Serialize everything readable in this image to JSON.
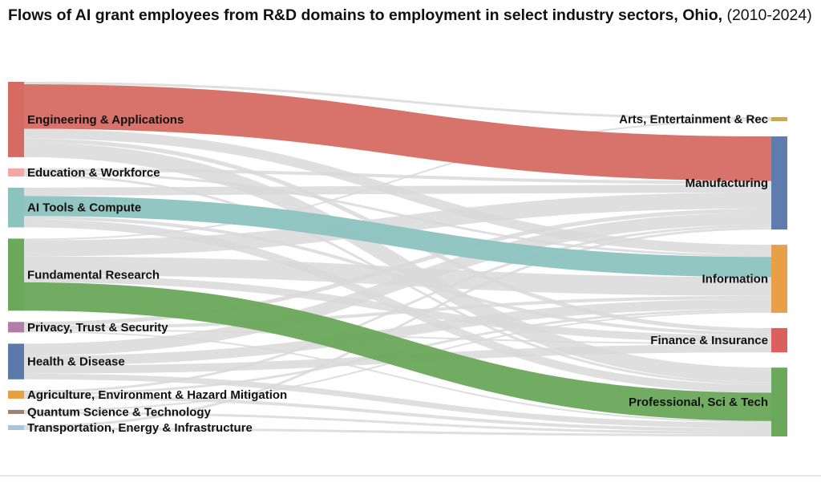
{
  "chart_data": {
    "type": "sankey",
    "title": "Flows of AI grant employees from R&D domains to employment in select industry sectors, Ohio,",
    "subtitle": "(2010-2024)",
    "link_color": "#d9d9d9",
    "sources": [
      {
        "name": "Engineering & Applications",
        "color": "#d66b64"
      },
      {
        "name": "Education & Workforce",
        "color": "#f4a6a8"
      },
      {
        "name": "AI Tools & Compute",
        "color": "#8cc3bf"
      },
      {
        "name": "Fundamental Research",
        "color": "#6aa85b"
      },
      {
        "name": "Privacy, Trust & Security",
        "color": "#b07ea6"
      },
      {
        "name": "Health & Disease",
        "color": "#5b7aaa"
      },
      {
        "name": "Agriculture, Environment & Hazard Mitigation",
        "color": "#e8a040"
      },
      {
        "name": "Quantum Science & Technology",
        "color": "#9c8270"
      },
      {
        "name": "Transportation, Energy & Infrastructure",
        "color": "#a9c4de"
      }
    ],
    "targets": [
      {
        "name": "Arts, Entertainment & Rec",
        "color": "#c8a95a"
      },
      {
        "name": "Manufacturing",
        "color": "#5e7dae"
      },
      {
        "name": "Information",
        "color": "#e8a048"
      },
      {
        "name": "Finance & Insurance",
        "color": "#d9605c"
      },
      {
        "name": "Professional, Sci & Tech",
        "color": "#6aa85b"
      }
    ],
    "links": [
      {
        "source": 0,
        "target": 0,
        "value": 3
      },
      {
        "source": 0,
        "target": 1,
        "value": 55,
        "color": "#d66b64"
      },
      {
        "source": 0,
        "target": 2,
        "value": 12
      },
      {
        "source": 0,
        "target": 3,
        "value": 5
      },
      {
        "source": 0,
        "target": 4,
        "value": 18
      },
      {
        "source": 1,
        "target": 1,
        "value": 4
      },
      {
        "source": 1,
        "target": 2,
        "value": 3
      },
      {
        "source": 1,
        "target": 4,
        "value": 3
      },
      {
        "source": 2,
        "target": 1,
        "value": 10
      },
      {
        "source": 2,
        "target": 2,
        "value": 25,
        "color": "#8cc3bf"
      },
      {
        "source": 2,
        "target": 3,
        "value": 4
      },
      {
        "source": 2,
        "target": 4,
        "value": 10
      },
      {
        "source": 3,
        "target": 0,
        "value": 2
      },
      {
        "source": 3,
        "target": 1,
        "value": 20
      },
      {
        "source": 3,
        "target": 2,
        "value": 23
      },
      {
        "source": 3,
        "target": 3,
        "value": 9
      },
      {
        "source": 3,
        "target": 4,
        "value": 35,
        "color": "#6aa85b"
      },
      {
        "source": 4,
        "target": 1,
        "value": 5
      },
      {
        "source": 4,
        "target": 2,
        "value": 4
      },
      {
        "source": 4,
        "target": 3,
        "value": 2
      },
      {
        "source": 4,
        "target": 4,
        "value": 2
      },
      {
        "source": 5,
        "target": 1,
        "value": 15
      },
      {
        "source": 5,
        "target": 2,
        "value": 12
      },
      {
        "source": 5,
        "target": 3,
        "value": 10
      },
      {
        "source": 5,
        "target": 4,
        "value": 7
      },
      {
        "source": 6,
        "target": 1,
        "value": 3
      },
      {
        "source": 6,
        "target": 2,
        "value": 3
      },
      {
        "source": 6,
        "target": 4,
        "value": 4
      },
      {
        "source": 7,
        "target": 2,
        "value": 2
      },
      {
        "source": 7,
        "target": 4,
        "value": 3
      },
      {
        "source": 8,
        "target": 1,
        "value": 3
      },
      {
        "source": 8,
        "target": 4,
        "value": 3
      }
    ]
  }
}
